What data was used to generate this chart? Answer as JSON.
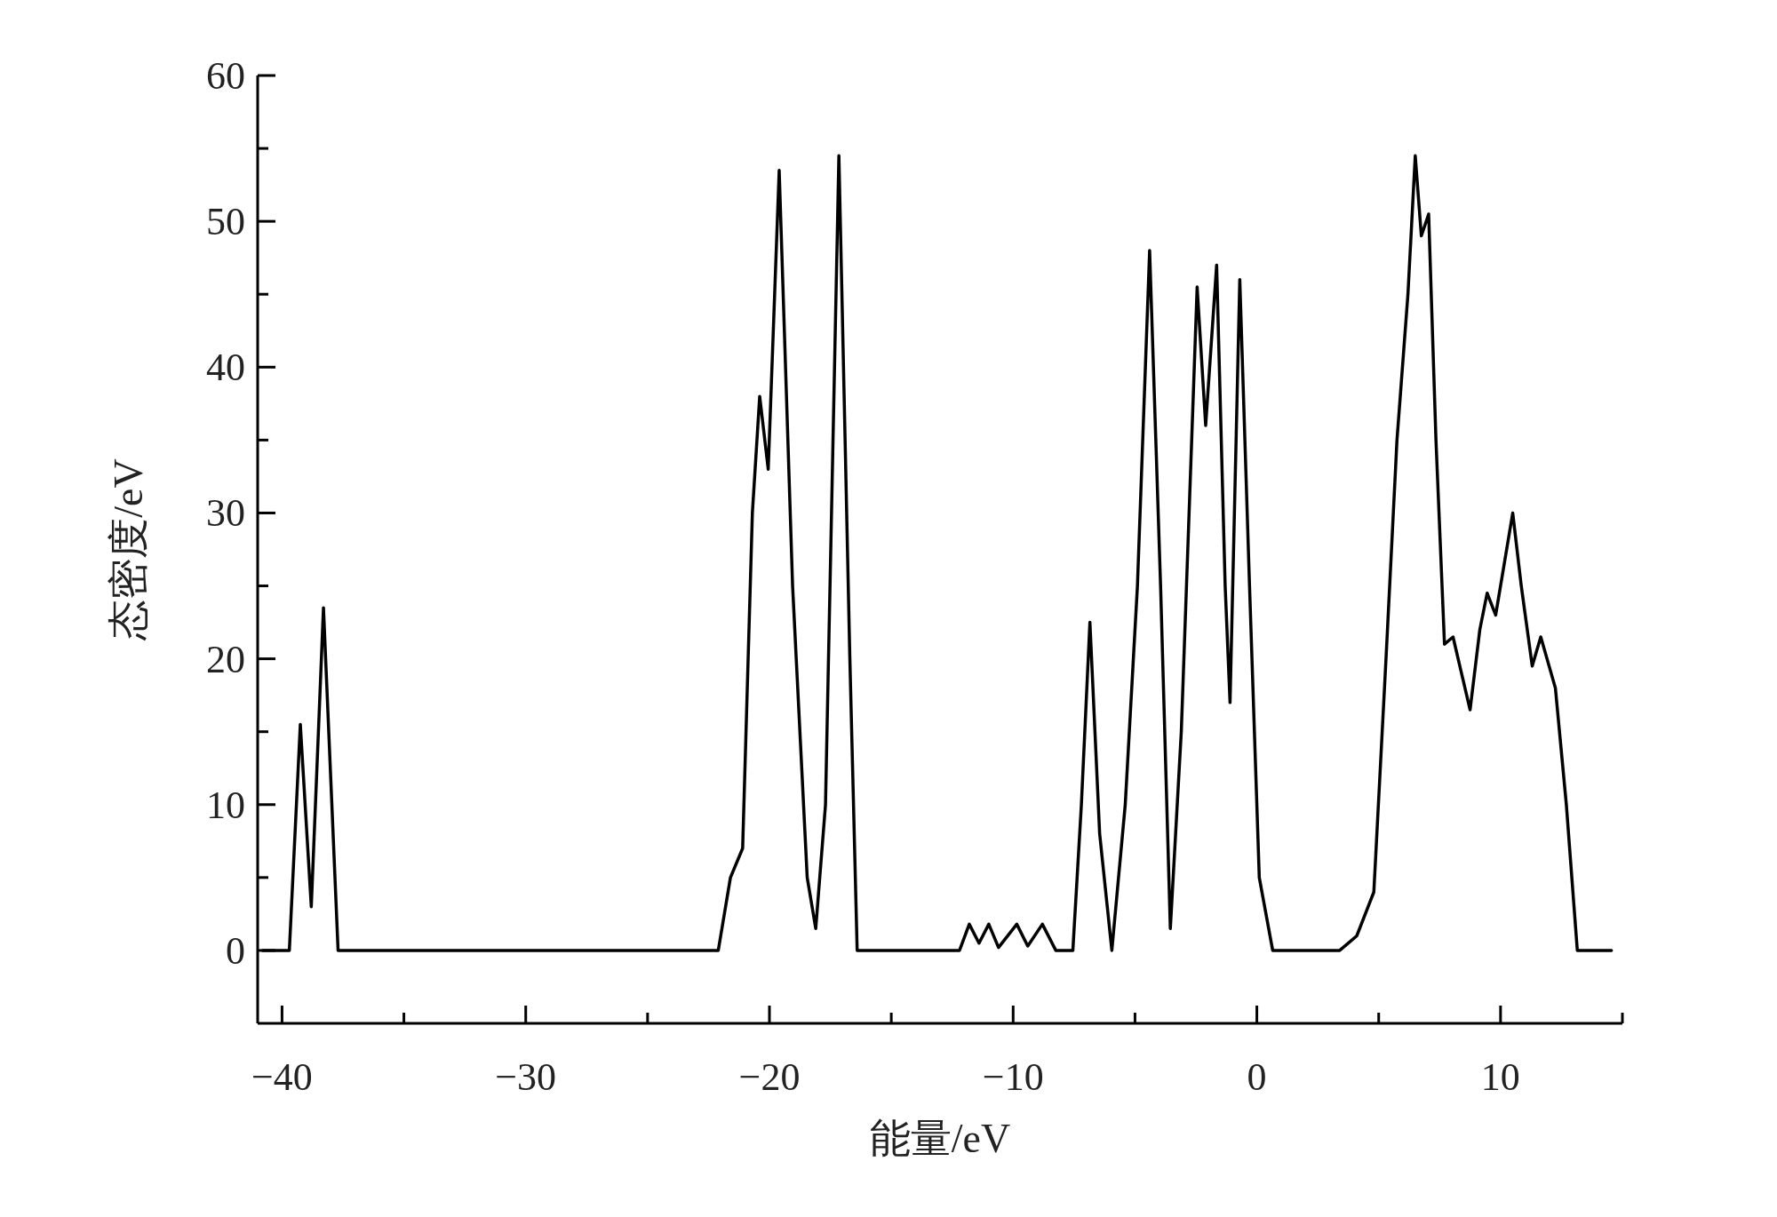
{
  "chart_data": {
    "type": "line",
    "xlabel": "能量/eV",
    "ylabel": "态密度/eV",
    "xlim": [
      -41,
      15
    ],
    "ylim": [
      -5,
      60
    ],
    "xticks": [
      -40,
      {
        "value": -35,
        "label": null
      },
      -30,
      {
        "value": -25,
        "label": null
      },
      -20,
      {
        "value": -15,
        "label": null
      },
      -10,
      {
        "value": -5,
        "label": null
      },
      0,
      {
        "value": 5,
        "label": null
      },
      10,
      {
        "value": 15,
        "label": null
      }
    ],
    "yticks": [
      0,
      {
        "value": 5,
        "label": null
      },
      10,
      {
        "value": 15,
        "label": null
      },
      20,
      {
        "value": 25,
        "label": null
      },
      30,
      {
        "value": 35,
        "label": null
      },
      40,
      {
        "value": 45,
        "label": null
      },
      50,
      {
        "value": 55,
        "label": null
      },
      60
    ],
    "grid": false,
    "series": [
      {
        "color": "#000000",
        "x": [
          -40.8,
          -39.7,
          -39.25,
          -38.8,
          -38.3,
          -37.7,
          -22.1,
          -21.6,
          -21.1,
          -20.7,
          -20.4,
          -20.05,
          -19.6,
          -19.05,
          -18.45,
          -18.1,
          -17.7,
          -17.15,
          -16.7,
          -16.4,
          -12.2,
          -11.8,
          -11.4,
          -11.0,
          -10.6,
          -9.85,
          -9.4,
          -8.8,
          -8.25,
          -7.55,
          -7.2,
          -6.85,
          -6.45,
          -5.95,
          -5.4,
          -4.9,
          -4.4,
          -3.95,
          -3.55,
          -3.1,
          -2.45,
          -2.1,
          -1.65,
          -1.3,
          -1.1,
          -0.7,
          -0.3,
          0.1,
          0.65,
          3.4,
          4.1,
          4.8,
          5.3,
          5.75,
          6.2,
          6.5,
          6.75,
          7.05,
          7.35,
          7.7,
          8.05,
          8.4,
          8.75,
          9.15,
          9.45,
          9.8,
          10.5,
          10.85,
          11.3,
          11.65,
          12.25,
          12.7,
          13.15,
          14.55
        ],
        "values": [
          0,
          0,
          15.5,
          3,
          23.5,
          0,
          0,
          5,
          7,
          30,
          38,
          33,
          53.5,
          25,
          5,
          1.5,
          10,
          54.5,
          20,
          0,
          0,
          1.8,
          0.5,
          1.8,
          0.2,
          1.8,
          0.3,
          1.8,
          0,
          0,
          10,
          22.5,
          8,
          0,
          10,
          25,
          48,
          25,
          1.5,
          15,
          45.5,
          36,
          47,
          25,
          17,
          46,
          25,
          5,
          0,
          0,
          1,
          4,
          20,
          35,
          45,
          54.5,
          49,
          50.5,
          35,
          21,
          21.5,
          19,
          16.5,
          22,
          24.5,
          23,
          30,
          25,
          19.5,
          21.5,
          18,
          10,
          0,
          0
        ]
      }
    ]
  }
}
